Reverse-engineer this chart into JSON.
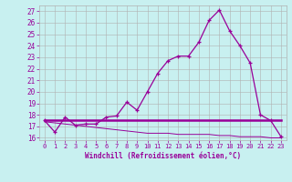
{
  "xlabel": "Windchill (Refroidissement éolien,°C)",
  "bg_color": "#c8f0f0",
  "line_color": "#990099",
  "grid_color": "#b0b0b0",
  "ylim": [
    15.8,
    27.5
  ],
  "xlim": [
    -0.5,
    23.5
  ],
  "yticks": [
    16,
    17,
    18,
    19,
    20,
    21,
    22,
    23,
    24,
    25,
    26,
    27
  ],
  "xticks": [
    0,
    1,
    2,
    3,
    4,
    5,
    6,
    7,
    8,
    9,
    10,
    11,
    12,
    13,
    14,
    15,
    16,
    17,
    18,
    19,
    20,
    21,
    22,
    23
  ],
  "main_x": [
    0,
    1,
    2,
    3,
    4,
    5,
    6,
    7,
    8,
    9,
    10,
    11,
    12,
    13,
    14,
    15,
    16,
    17,
    18,
    19,
    20,
    21,
    22,
    23
  ],
  "main_y": [
    17.5,
    16.5,
    17.8,
    17.1,
    17.2,
    17.2,
    17.8,
    17.9,
    19.1,
    18.4,
    20.0,
    21.6,
    22.7,
    23.1,
    23.1,
    24.3,
    26.2,
    27.1,
    25.3,
    24.0,
    22.5,
    18.0,
    17.5,
    16.1
  ],
  "flat_x": [
    0,
    1,
    2,
    3,
    4,
    5,
    6,
    7,
    8,
    9,
    10,
    11,
    12,
    13,
    14,
    15,
    16,
    17,
    18,
    19,
    20,
    21,
    22,
    23
  ],
  "flat_y": [
    17.5,
    17.5,
    17.5,
    17.5,
    17.5,
    17.5,
    17.5,
    17.5,
    17.5,
    17.5,
    17.5,
    17.5,
    17.5,
    17.5,
    17.5,
    17.5,
    17.5,
    17.5,
    17.5,
    17.5,
    17.5,
    17.5,
    17.5,
    17.5
  ],
  "decline_x": [
    0,
    1,
    2,
    3,
    4,
    5,
    6,
    7,
    8,
    9,
    10,
    11,
    12,
    13,
    14,
    15,
    16,
    17,
    18,
    19,
    20,
    21,
    22,
    23
  ],
  "decline_y": [
    17.4,
    17.3,
    17.2,
    17.1,
    17.0,
    16.9,
    16.8,
    16.7,
    16.6,
    16.5,
    16.4,
    16.4,
    16.4,
    16.3,
    16.3,
    16.3,
    16.3,
    16.2,
    16.2,
    16.1,
    16.1,
    16.1,
    16.0,
    16.0
  ]
}
